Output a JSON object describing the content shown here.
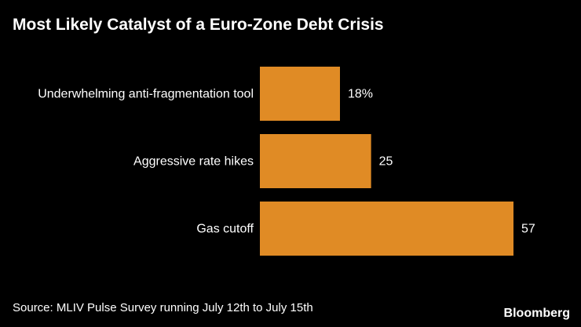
{
  "chart_data": {
    "type": "bar",
    "orientation": "horizontal",
    "title": "Most Likely Catalyst of a Euro-Zone Debt Crisis",
    "categories": [
      "Underwhelming anti-fragmentation tool",
      "Aggressive rate hikes",
      "Gas cutoff"
    ],
    "values": [
      18,
      25,
      57
    ],
    "value_labels": [
      "18%",
      "25",
      "57"
    ],
    "xlim": [
      0,
      57
    ],
    "bar_color": "#e08b25",
    "source": "Source: MLIV Pulse Survey running July 12th to July 15th"
  },
  "branding": {
    "label": "Bloomberg"
  }
}
